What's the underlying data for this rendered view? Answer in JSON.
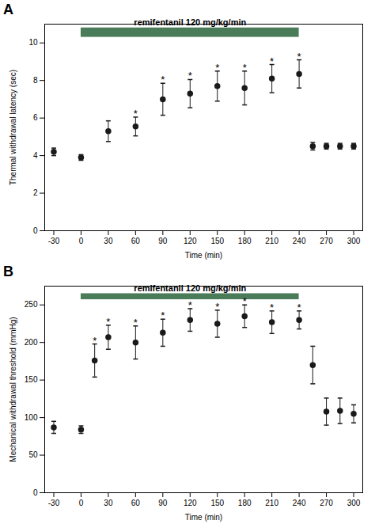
{
  "chart_data": [
    {
      "type": "scatter",
      "panel_label": "A",
      "title": "remifentanil 120 mg/kg/min",
      "ylabel": "Thermal withdrawal latency (sec)",
      "xlabel": "Time (min)",
      "x": [
        -30,
        0,
        30,
        60,
        90,
        120,
        150,
        180,
        210,
        240,
        255,
        270,
        285,
        300
      ],
      "values": [
        4.2,
        3.9,
        5.3,
        5.55,
        7.0,
        7.3,
        7.7,
        7.6,
        8.1,
        8.35,
        4.5,
        4.5,
        4.5,
        4.5
      ],
      "yerr": [
        0.2,
        0.15,
        0.55,
        0.5,
        0.85,
        0.75,
        0.8,
        0.9,
        0.75,
        0.75,
        0.2,
        0.15,
        0.15,
        0.15
      ],
      "color": "#1a1a1a",
      "marker": "o",
      "significance": {
        "label": "*",
        "x": [
          60,
          90,
          120,
          150,
          180,
          210,
          240
        ]
      },
      "bar": {
        "xmin": 0,
        "xmax": 240,
        "ymin": 10.3,
        "ymax": 10.8,
        "color": "#4a7c59"
      },
      "xlim": [
        -40,
        310
      ],
      "xticks": [
        -30,
        0,
        30,
        60,
        90,
        120,
        150,
        180,
        210,
        240,
        270,
        300
      ],
      "ylim": [
        0,
        11
      ],
      "yticks": [
        0,
        2,
        4,
        6,
        8,
        10
      ],
      "grid": false
    },
    {
      "type": "scatter",
      "panel_label": "B",
      "title": "remifentanil 120 mg/kg/min",
      "ylabel": "Mechanical withdrawal threshold (mmHg)",
      "xlabel": "Time (min)",
      "x": [
        -30,
        0,
        15,
        30,
        60,
        90,
        120,
        150,
        180,
        210,
        240,
        255,
        270,
        285,
        300
      ],
      "values": [
        87,
        84,
        176,
        207,
        200,
        213,
        230,
        225,
        235,
        227,
        230,
        170,
        108,
        109,
        105
      ],
      "yerr": [
        8,
        5,
        22,
        16,
        22,
        18,
        15,
        18,
        15,
        15,
        12,
        25,
        18,
        17,
        12
      ],
      "color": "#1a1a1a",
      "marker": "o",
      "significance": {
        "label": "*",
        "x": [
          15,
          30,
          60,
          90,
          120,
          150,
          180,
          210,
          240
        ]
      },
      "bar": {
        "xmin": 0,
        "xmax": 240,
        "ymin": 257,
        "ymax": 265,
        "color": "#4a7c59"
      },
      "xlim": [
        -40,
        310
      ],
      "xticks": [
        -30,
        0,
        30,
        60,
        90,
        120,
        150,
        180,
        210,
        240,
        270,
        300
      ],
      "ylim": [
        0,
        275
      ],
      "yticks": [
        0,
        50,
        100,
        150,
        200,
        250
      ],
      "grid": false
    }
  ]
}
